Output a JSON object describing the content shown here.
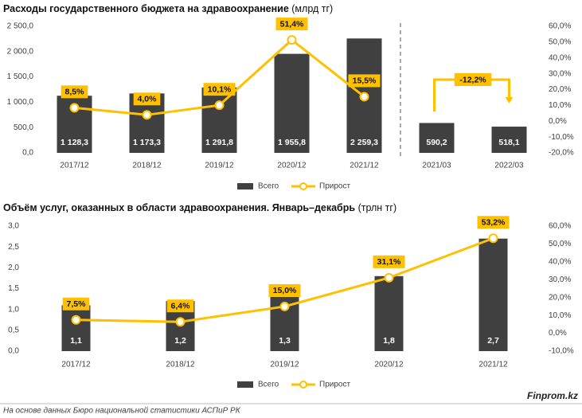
{
  "chart_data": [
    {
      "type": "bar",
      "title": "Расходы государственного бюджета на здравоохранение",
      "title_unit": "(млрд тг)",
      "categories": [
        "2017/12",
        "2018/12",
        "2019/12",
        "2020/12",
        "2021/12",
        "2021/03",
        "2022/03"
      ],
      "series": [
        {
          "name": "Всего",
          "type": "bar",
          "color": "#404040",
          "values": [
            1128.3,
            1173.3,
            1291.8,
            1955.8,
            2259.3,
            590.2,
            518.1
          ],
          "value_labels": [
            "1 128,3",
            "1 173,3",
            "1 291,8",
            "1 955,8",
            "2 259,3",
            "590,2",
            "518,1"
          ]
        },
        {
          "name": "Прирост",
          "type": "line",
          "axis": "y2",
          "color": "#FFC000",
          "values": [
            8.5,
            4.0,
            10.1,
            51.4,
            15.5,
            null,
            null
          ],
          "value_labels": [
            "8,5%",
            "4,0%",
            "10,1%",
            "51,4%",
            "15,5%",
            null,
            null
          ]
        }
      ],
      "annotation": "-12,2%",
      "ylim": [
        0,
        2500
      ],
      "yticks": [
        {
          "value": 0,
          "label": "0,0"
        },
        {
          "value": 500,
          "label": "500,0"
        },
        {
          "value": 1000,
          "label": "1 000,0"
        },
        {
          "value": 1500,
          "label": "1 500,0"
        },
        {
          "value": 2000,
          "label": "2 000,0"
        },
        {
          "value": 2500,
          "label": "2 500,0"
        }
      ],
      "y2lim": [
        -20,
        60
      ],
      "y2ticks": [
        {
          "value": -20,
          "label": "-20,0%"
        },
        {
          "value": -10,
          "label": "-10,0%"
        },
        {
          "value": 0,
          "label": "0,0%"
        },
        {
          "value": 10,
          "label": "10,0%"
        },
        {
          "value": 20,
          "label": "20,0%"
        },
        {
          "value": 30,
          "label": "30,0%"
        },
        {
          "value": 40,
          "label": "40,0%"
        },
        {
          "value": 50,
          "label": "50,0%"
        },
        {
          "value": 60,
          "label": "60,0%"
        }
      ],
      "grid": false,
      "legend": "bottom"
    },
    {
      "type": "bar",
      "title": "Объём услуг, оказанных в области здравоохранения. Январь–декабрь",
      "title_unit": "(трлн тг)",
      "categories": [
        "2017/12",
        "2018/12",
        "2019/12",
        "2020/12",
        "2021/12"
      ],
      "series": [
        {
          "name": "Всего",
          "type": "bar",
          "color": "#404040",
          "values": [
            1.1,
            1.2,
            1.3,
            1.8,
            2.7
          ],
          "value_labels": [
            "1,1",
            "1,2",
            "1,3",
            "1,8",
            "2,7"
          ]
        },
        {
          "name": "Прирост",
          "type": "line",
          "axis": "y2",
          "color": "#FFC000",
          "values": [
            7.5,
            6.4,
            15.0,
            31.1,
            53.2
          ],
          "value_labels": [
            "7,5%",
            "6,4%",
            "15,0%",
            "31,1%",
            "53,2%"
          ]
        }
      ],
      "ylim": [
        0,
        3
      ],
      "yticks": [
        {
          "value": 0,
          "label": "0,0"
        },
        {
          "value": 0.5,
          "label": "0,5"
        },
        {
          "value": 1,
          "label": "1,0"
        },
        {
          "value": 1.5,
          "label": "1,5"
        },
        {
          "value": 2,
          "label": "2,0"
        },
        {
          "value": 2.5,
          "label": "2,5"
        },
        {
          "value": 3,
          "label": "3,0"
        }
      ],
      "y2lim": [
        -10,
        60
      ],
      "y2ticks": [
        {
          "value": -10,
          "label": "-10,0%"
        },
        {
          "value": 0,
          "label": "0,0%"
        },
        {
          "value": 10,
          "label": "10,0%"
        },
        {
          "value": 20,
          "label": "20,0%"
        },
        {
          "value": 30,
          "label": "30,0%"
        },
        {
          "value": 40,
          "label": "40,0%"
        },
        {
          "value": 50,
          "label": "50,0%"
        },
        {
          "value": 60,
          "label": "60,0%"
        }
      ],
      "grid": false,
      "legend": "bottom"
    }
  ],
  "source": "На основе данных Бюро национальной статистики АСПиР РК",
  "brand": "Finprom.kz"
}
